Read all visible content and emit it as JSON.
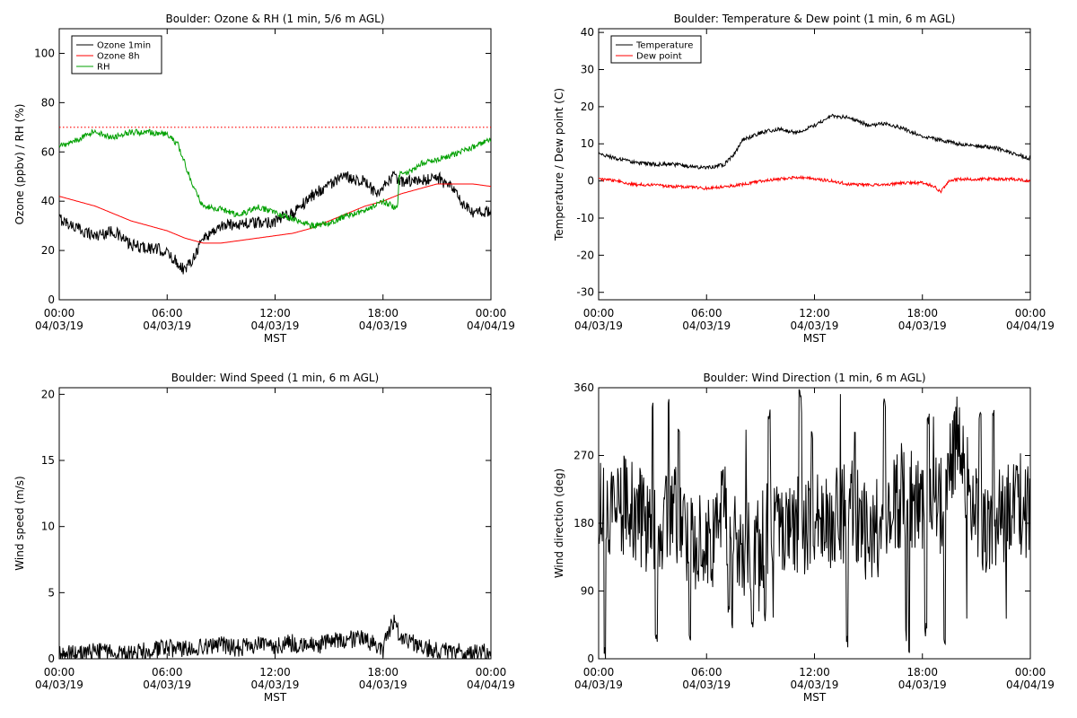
{
  "chart_data": [
    {
      "type": "line",
      "title": "Boulder: Ozone & RH (1 min, 5/6 m AGL)",
      "xlabel": "MST",
      "ylabel": "Ozone (ppbv) / RH (%)",
      "xlim": [
        0,
        24
      ],
      "ylim": [
        0,
        110
      ],
      "yticks": [
        0,
        20,
        40,
        60,
        80,
        100
      ],
      "xticks": [
        {
          "t": 0,
          "time": "00:00",
          "date": "04/03/19"
        },
        {
          "t": 6,
          "time": "06:00",
          "date": "04/03/19"
        },
        {
          "t": 12,
          "time": "12:00",
          "date": "04/03/19"
        },
        {
          "t": 18,
          "time": "18:00",
          "date": "04/03/19"
        },
        {
          "t": 24,
          "time": "00:00",
          "date": "04/04/19"
        }
      ],
      "reference_line": {
        "y": 70,
        "color": "#ff0000",
        "style": "dotted"
      },
      "legend_position": "top-left",
      "series": [
        {
          "name": "Ozone 1min",
          "color": "#000000",
          "noise": 2.5,
          "x": [
            0,
            1,
            2,
            3,
            4,
            5,
            5.8,
            6.3,
            7,
            7.5,
            8,
            9,
            10,
            11,
            12,
            13,
            14,
            15,
            16,
            17,
            17.7,
            18.5,
            19,
            20,
            21,
            22,
            22.5,
            23,
            24
          ],
          "y": [
            33,
            29,
            26,
            28,
            22,
            21,
            20,
            17,
            12,
            18,
            25,
            30,
            31,
            31,
            32,
            35,
            42,
            47,
            50,
            48,
            42,
            50,
            48,
            48,
            50,
            44,
            38,
            35,
            36
          ]
        },
        {
          "name": "Ozone 8h",
          "color": "#ff0000",
          "noise": 0,
          "x": [
            0,
            1,
            2,
            3,
            4,
            5,
            6,
            7,
            8,
            9,
            10,
            11,
            12,
            13,
            14,
            15,
            16,
            17,
            18,
            19,
            20,
            21,
            22,
            23,
            24
          ],
          "y": [
            42,
            40,
            38,
            35,
            32,
            30,
            28,
            25,
            23,
            23,
            24,
            25,
            26,
            27,
            29,
            32,
            35,
            38,
            40,
            43,
            45,
            47,
            47,
            47,
            46
          ]
        },
        {
          "name": "RH",
          "color": "#00a000",
          "noise": 1.2,
          "x": [
            0,
            1,
            1.8,
            3,
            4,
            5,
            6,
            6.6,
            7,
            7.5,
            8,
            9,
            10,
            11,
            12,
            13,
            14,
            15,
            16,
            17,
            18,
            18.8,
            18.9,
            19.5,
            20,
            21,
            22,
            23,
            24
          ],
          "y": [
            62,
            65,
            68,
            66,
            68,
            68,
            67,
            63,
            55,
            45,
            38,
            37,
            34,
            38,
            35,
            33,
            30,
            31,
            34,
            36,
            40,
            37,
            51,
            52,
            55,
            57,
            59,
            62,
            65
          ]
        }
      ]
    },
    {
      "type": "line",
      "title": "Boulder: Temperature & Dew point (1 min, 6 m AGL)",
      "xlabel": "MST",
      "ylabel": "Temperature / Dew point (C)",
      "xlim": [
        0,
        24
      ],
      "ylim": [
        -32,
        41
      ],
      "yticks": [
        -30,
        -20,
        -10,
        0,
        10,
        20,
        30,
        40
      ],
      "xticks": [
        {
          "t": 0,
          "time": "00:00",
          "date": "04/03/19"
        },
        {
          "t": 6,
          "time": "06:00",
          "date": "04/03/19"
        },
        {
          "t": 12,
          "time": "12:00",
          "date": "04/03/19"
        },
        {
          "t": 18,
          "time": "18:00",
          "date": "04/03/19"
        },
        {
          "t": 24,
          "time": "00:00",
          "date": "04/04/19"
        }
      ],
      "legend_position": "top-left",
      "series": [
        {
          "name": "Temperature",
          "color": "#000000",
          "noise": 0.5,
          "x": [
            0,
            1,
            2,
            3,
            4,
            5,
            6,
            7,
            7.5,
            8,
            9,
            10,
            11,
            12,
            13,
            14,
            15,
            16,
            17,
            18,
            19,
            20,
            21,
            22,
            23,
            24
          ],
          "y": [
            7.5,
            6,
            5,
            4.5,
            4.5,
            4,
            3.5,
            4.5,
            7,
            11,
            13,
            14,
            13,
            15,
            17.5,
            17,
            15,
            15.5,
            14,
            12,
            11,
            10,
            9.5,
            9,
            7.5,
            6
          ]
        },
        {
          "name": "Dew point",
          "color": "#ff0000",
          "noise": 0.4,
          "x": [
            0,
            1,
            2,
            3,
            4,
            5,
            6,
            7,
            8,
            9,
            10,
            11,
            12,
            13,
            14,
            15,
            16,
            17,
            18,
            18.7,
            19,
            19.5,
            20,
            21,
            22,
            23,
            24
          ],
          "y": [
            0.5,
            0,
            -1,
            -1,
            -1.5,
            -1.5,
            -2,
            -1.5,
            -1,
            0,
            0.5,
            1,
            0.5,
            0,
            -1,
            -1,
            -1,
            -0.5,
            -0.5,
            -1.5,
            -3,
            0,
            0.5,
            0.5,
            0.5,
            0.5,
            0
          ]
        }
      ]
    },
    {
      "type": "line",
      "title": "Boulder: Wind Speed (1 min, 6 m AGL)",
      "xlabel": "MST",
      "ylabel": "Wind speed (m/s)",
      "xlim": [
        0,
        24
      ],
      "ylim": [
        0,
        20.5
      ],
      "yticks": [
        0,
        5,
        10,
        15,
        20
      ],
      "xticks": [
        {
          "t": 0,
          "time": "00:00",
          "date": "04/03/19"
        },
        {
          "t": 6,
          "time": "06:00",
          "date": "04/03/19"
        },
        {
          "t": 12,
          "time": "12:00",
          "date": "04/03/19"
        },
        {
          "t": 18,
          "time": "18:00",
          "date": "04/03/19"
        },
        {
          "t": 24,
          "time": "00:00",
          "date": "04/04/19"
        }
      ],
      "series": [
        {
          "name": "Wind speed",
          "color": "#000000",
          "noise": 0.7,
          "min": 0,
          "x": [
            0,
            2,
            4,
            5,
            6,
            7,
            8,
            9,
            10,
            11,
            12,
            13,
            14,
            15,
            16,
            17,
            18,
            18.6,
            19,
            20,
            21,
            22,
            23,
            24
          ],
          "y": [
            0.3,
            0.5,
            0.4,
            0.6,
            0.8,
            0.7,
            0.9,
            1.0,
            0.8,
            1.0,
            1.0,
            1.2,
            1.0,
            1.2,
            1.5,
            1.5,
            0.8,
            3.0,
            1.6,
            1.0,
            0.6,
            0.5,
            0.4,
            0.5
          ]
        }
      ]
    },
    {
      "type": "line",
      "title": "Boulder: Wind Direction (1 min, 6 m AGL)",
      "xlabel": "MST",
      "ylabel": "Wind direction (deg)",
      "xlim": [
        0,
        24
      ],
      "ylim": [
        0,
        360
      ],
      "yticks": [
        0,
        90,
        180,
        270,
        360
      ],
      "xticks": [
        {
          "t": 0,
          "time": "00:00",
          "date": "04/03/19"
        },
        {
          "t": 6,
          "time": "06:00",
          "date": "04/03/19"
        },
        {
          "t": 12,
          "time": "12:00",
          "date": "04/03/19"
        },
        {
          "t": 18,
          "time": "18:00",
          "date": "04/03/19"
        },
        {
          "t": 24,
          "time": "00:00",
          "date": "04/04/19"
        }
      ],
      "series": [
        {
          "name": "Wind direction",
          "color": "#000000",
          "noise": 70,
          "min": 0,
          "max": 360,
          "jump_prob": 0.05,
          "x": [
            0,
            1,
            2,
            3,
            4,
            5,
            6,
            7,
            8,
            9,
            10,
            11,
            12,
            13,
            14,
            15,
            16,
            17,
            18,
            19,
            20,
            21,
            22,
            23,
            24
          ],
          "y": [
            200,
            210,
            190,
            170,
            200,
            160,
            150,
            190,
            140,
            160,
            170,
            180,
            180,
            180,
            200,
            170,
            170,
            230,
            200,
            200,
            300,
            190,
            170,
            210,
            200
          ]
        }
      ]
    }
  ]
}
